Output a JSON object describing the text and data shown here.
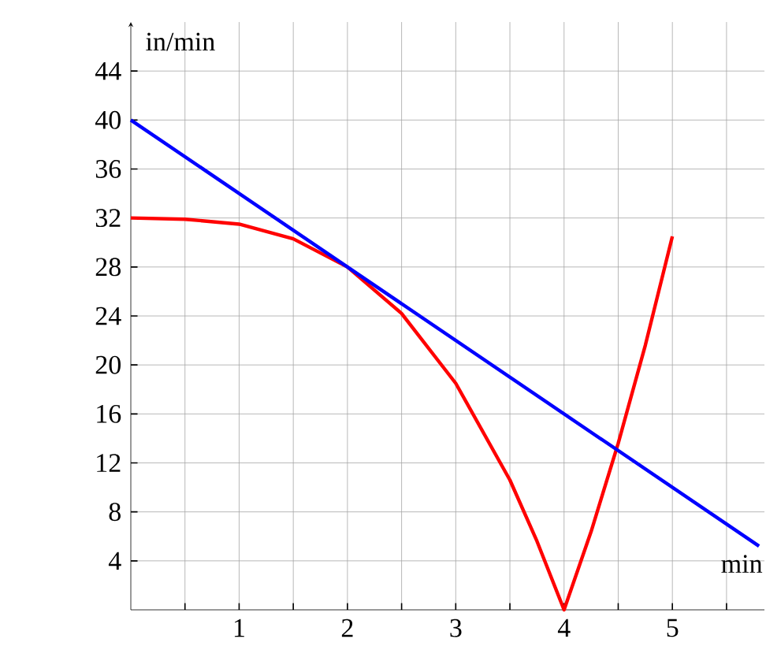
{
  "chart_data": {
    "type": "line",
    "xlabel": "min",
    "ylabel": "in/min",
    "xlim": [
      0,
      5.85
    ],
    "ylim": [
      0,
      48
    ],
    "xticks": [
      {
        "value": 0.5,
        "label": null
      },
      1,
      {
        "value": 1.5,
        "label": null
      },
      2,
      {
        "value": 2.5,
        "label": null
      },
      3,
      {
        "value": 3.5,
        "label": null
      },
      4,
      {
        "value": 4.5,
        "label": null
      },
      5,
      {
        "value": 5.5,
        "label": null
      }
    ],
    "yticks": [
      4,
      8,
      12,
      16,
      20,
      24,
      28,
      32,
      36,
      40,
      44
    ],
    "grid": true,
    "line_style": "solid",
    "marker": "none",
    "series": [
      {
        "color": "#ff0000",
        "x": [
          0,
          0.5,
          1,
          1.5,
          2,
          2.5,
          3,
          3.5,
          3.75,
          4,
          4.25,
          4.5,
          4.75,
          5
        ],
        "values": [
          32,
          31.9,
          31.5,
          30.3,
          28,
          24.2,
          18.5,
          10.6,
          5.6,
          0,
          6.4,
          13.6,
          21.6,
          30.5
        ]
      },
      {
        "color": "#0000ff",
        "x": [
          0,
          5.8
        ],
        "values": [
          40,
          5.2
        ]
      }
    ]
  }
}
